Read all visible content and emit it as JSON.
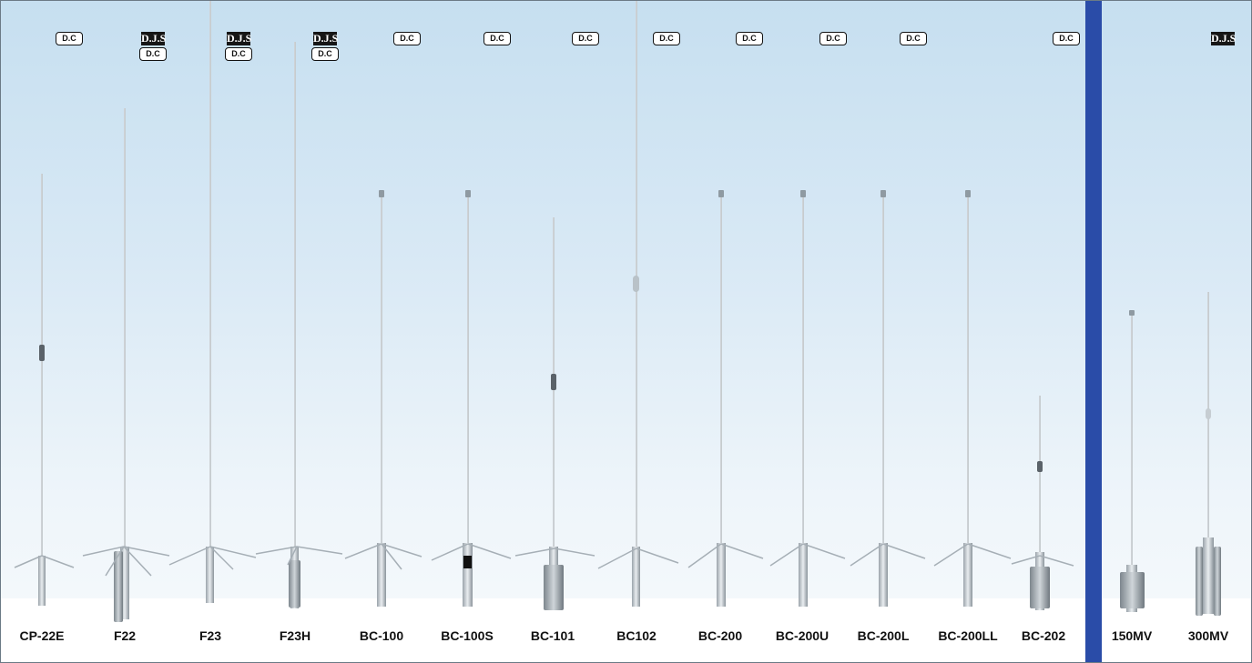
{
  "badges": {
    "dc": "D.C",
    "djs": "D.J.S"
  },
  "antennas": [
    {
      "model": "CP-22E",
      "badges": [
        "D.C"
      ]
    },
    {
      "model": "F22",
      "badges": [
        "D.J.S",
        "D.C"
      ]
    },
    {
      "model": "F23",
      "badges": [
        "D.J.S",
        "D.C"
      ]
    },
    {
      "model": "F23H",
      "badges": [
        "D.J.S",
        "D.C"
      ]
    },
    {
      "model": "BC-100",
      "badges": [
        "D.C"
      ]
    },
    {
      "model": "BC-100S",
      "badges": [
        "D.C"
      ]
    },
    {
      "model": "BC-101",
      "badges": [
        "D.C"
      ]
    },
    {
      "model": "BC102",
      "badges": [
        "D.C"
      ]
    },
    {
      "model": "BC-200",
      "badges": [
        "D.C"
      ]
    },
    {
      "model": "BC-200U",
      "badges": [
        "D.C"
      ]
    },
    {
      "model": "BC-200L",
      "badges": [
        "D.C"
      ]
    },
    {
      "model": "BC-200LL",
      "badges": []
    },
    {
      "model": "BC-202",
      "badges": [
        "D.C"
      ]
    },
    {
      "model": "150MV",
      "badges": []
    },
    {
      "model": "300MV",
      "badges": [
        "D.J.S"
      ]
    }
  ],
  "colors": {
    "divider": "#2a4ca8",
    "background_top": "#c6dff0",
    "background_bottom": "#f7fafc"
  }
}
